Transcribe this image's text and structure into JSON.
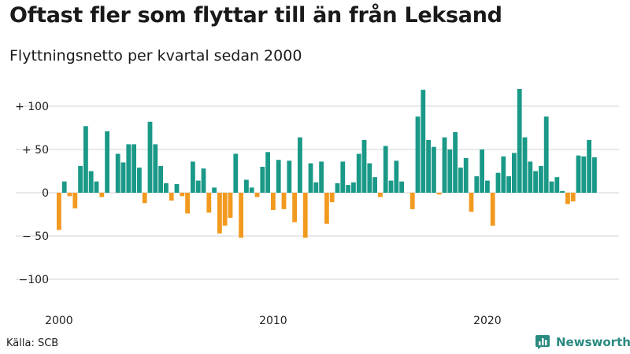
{
  "title": "Oftast fler som flyttar till än från Leksand",
  "subtitle": "Flyttningsnetto per kvartal sedan 2000",
  "source": "Källa: SCB",
  "brand": {
    "name": "Newsworthy",
    "icon": "chart-logo-icon"
  },
  "colors": {
    "positive": "#1a9988",
    "negative": "#f19a1f",
    "grid": "#d3d3d3",
    "brand": "#2a8a80"
  },
  "chart_data": {
    "type": "bar",
    "title": "Oftast fler som flyttar till än från Leksand",
    "subtitle": "Flyttningsnetto per kvartal sedan 2000",
    "xlabel": "",
    "ylabel": "",
    "ylim": [
      -110,
      125
    ],
    "grid": true,
    "legend": "none",
    "y_ticks": [
      100,
      50,
      0,
      -50,
      -100
    ],
    "y_tick_labels": [
      "+ 100",
      "+  50",
      "0",
      "− 50",
      "−100"
    ],
    "x_tick_labels": [
      {
        "label": "2000",
        "year": 2000
      },
      {
        "label": "2010",
        "year": 2010
      },
      {
        "label": "2020",
        "year": 2020
      }
    ],
    "start": "2000 Q1",
    "frequency": "quarterly",
    "values": [
      -43,
      13,
      -4,
      -18,
      31,
      77,
      25,
      13,
      -5,
      71,
      0,
      45,
      35,
      56,
      56,
      29,
      -12,
      82,
      56,
      31,
      11,
      -9,
      10,
      -4,
      -24,
      36,
      14,
      28,
      -23,
      6,
      -47,
      -38,
      -29,
      45,
      -52,
      15,
      6,
      -5,
      30,
      47,
      -20,
      38,
      -19,
      37,
      -34,
      64,
      -52,
      34,
      12,
      36,
      -36,
      -11,
      11,
      36,
      9,
      12,
      45,
      61,
      34,
      18,
      -5,
      54,
      14,
      37,
      13,
      0,
      -19,
      88,
      119,
      61,
      53,
      -2,
      64,
      50,
      70,
      29,
      40,
      -22,
      19,
      50,
      14,
      -38,
      23,
      42,
      19,
      46,
      120,
      64,
      36,
      25,
      31,
      88,
      13,
      18,
      2,
      -13,
      -10,
      43,
      42,
      61,
      41
    ]
  }
}
